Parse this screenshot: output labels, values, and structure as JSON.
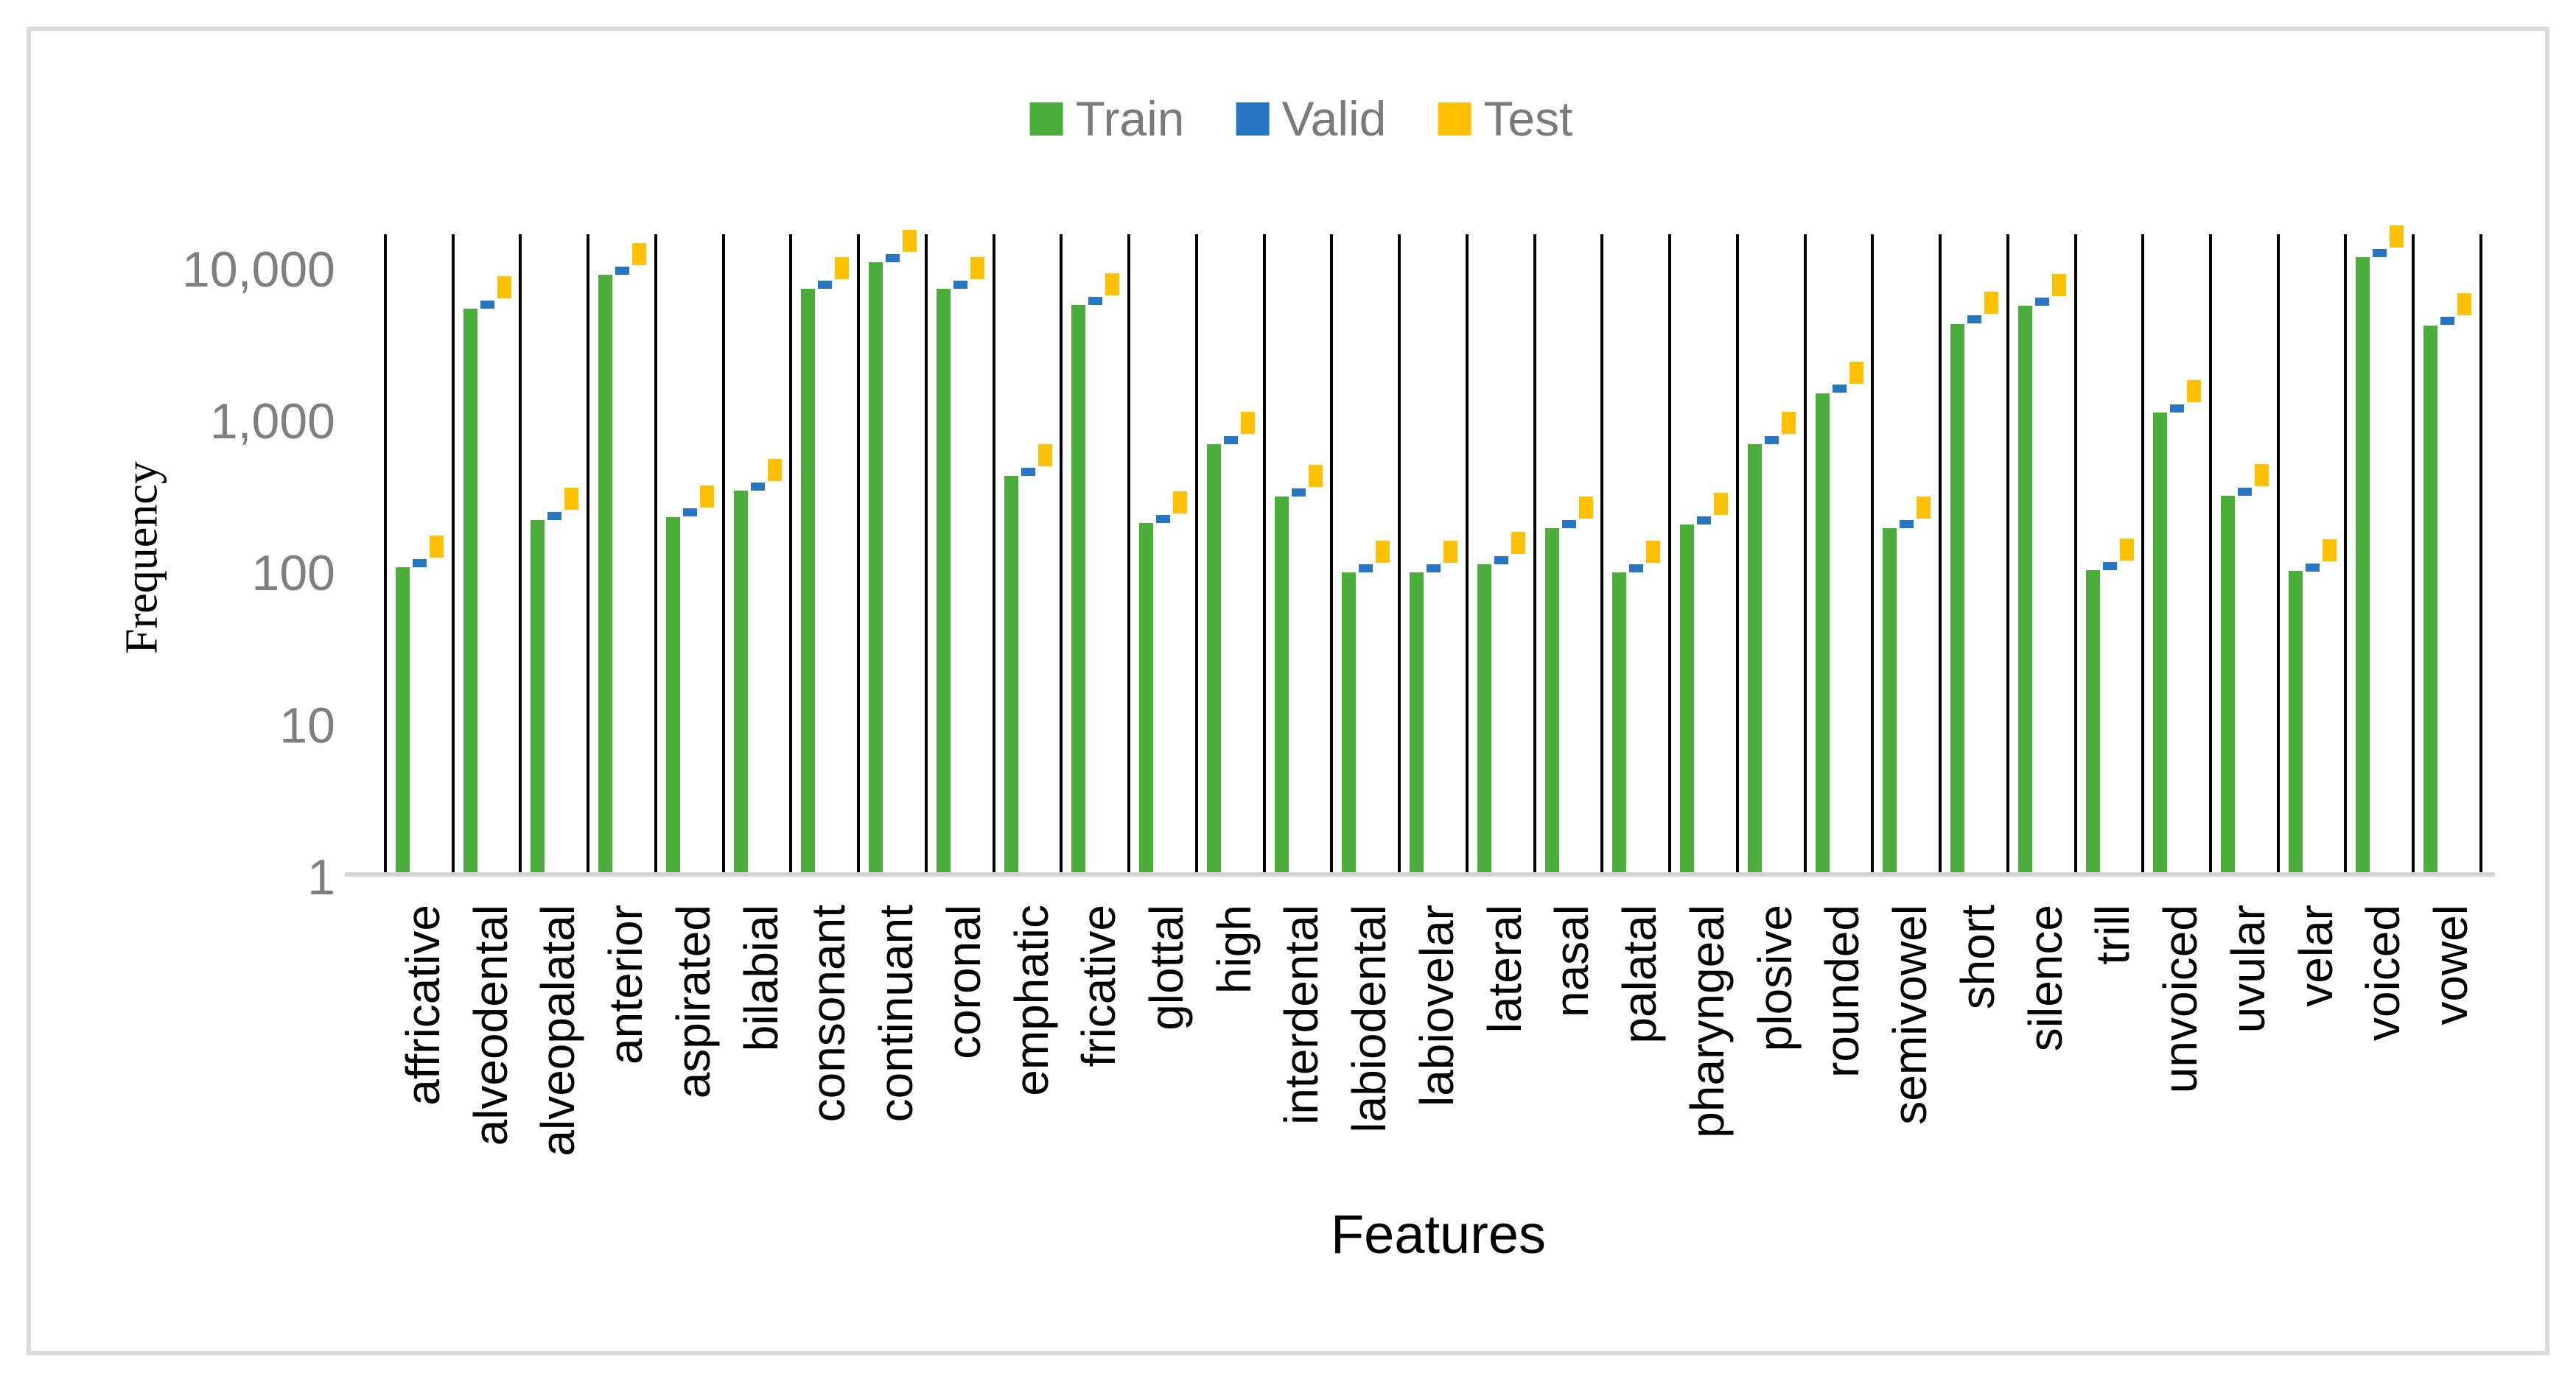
{
  "chart_data": {
    "type": "bar",
    "title": "",
    "xlabel": "Features",
    "ylabel": "Frequency",
    "y_scale": "log10",
    "ylim": [
      1,
      20000
    ],
    "grid": "vertical-category-separators",
    "legend_position": "top-center",
    "y_ticks": [
      {
        "label": "1",
        "value": 1
      },
      {
        "label": "10",
        "value": 10
      },
      {
        "label": "100",
        "value": 100
      },
      {
        "label": "1,000",
        "value": 1000
      },
      {
        "label": "10,000",
        "value": 10000
      }
    ],
    "categories": [
      "affricative",
      "alveodental",
      "alveopalatal",
      "anterior",
      "aspirated",
      "bilabial",
      "consonant",
      "continuant",
      "coronal",
      "emphatic",
      "fricative",
      "glottal",
      "high",
      "interdental",
      "labiodental",
      "labiovelar",
      "lateral",
      "nasal",
      "palatal",
      "pharyngeal",
      "plosive",
      "rounded",
      "semivowel",
      "short",
      "silence",
      "trill",
      "unvoiced",
      "uvular",
      "velar",
      "voiced",
      "vowel"
    ],
    "series": [
      {
        "name": "Train",
        "color": "#4BAD3A",
        "mark": "column",
        "values": [
          105,
          5300,
          215,
          8800,
          225,
          335,
          7100,
          10700,
          7100,
          420,
          5600,
          205,
          680,
          305,
          97,
          97,
          110,
          190,
          97,
          200,
          680,
          1470,
          190,
          4200,
          5500,
          100,
          1100,
          310,
          99,
          11500,
          4100
        ]
      },
      {
        "name": "Valid",
        "color": "#2776C4",
        "mark": "dash",
        "values": [
          112,
          5640,
          229,
          9370,
          240,
          357,
          7560,
          11400,
          7560,
          447,
          5960,
          218,
          724,
          325,
          103,
          103,
          117,
          202,
          103,
          213,
          724,
          1570,
          202,
          4470,
          5860,
          107,
          1170,
          330,
          105,
          12200,
          4370
        ]
      },
      {
        "name": "Test",
        "color": "#FFC000",
        "mark": "square",
        "values": [
          144,
          7260,
          295,
          12100,
          308,
          459,
          9730,
          14700,
          9730,
          575,
          7670,
          281,
          932,
          418,
          133,
          133,
          151,
          260,
          133,
          274,
          932,
          2010,
          260,
          5750,
          7540,
          137,
          1510,
          425,
          136,
          15800,
          5620
        ]
      }
    ],
    "colors": {
      "separator_line": "#000000",
      "axis_baseline": "#d6d6d6",
      "tick_text": "#7f7f7f",
      "category_text": "#000000",
      "figure_border": "#dbdbdb"
    }
  }
}
